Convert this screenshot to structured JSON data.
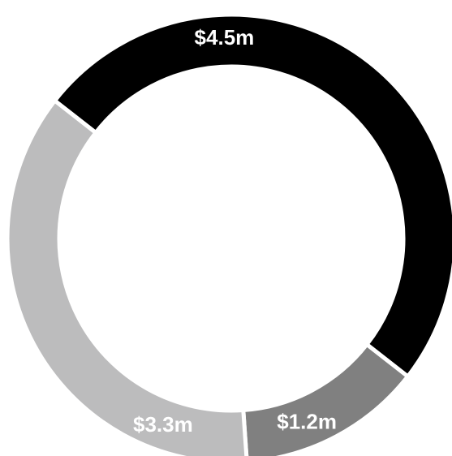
{
  "chart_data": {
    "type": "pie",
    "variant": "donut",
    "title": "",
    "slices": [
      {
        "label": "$4.5m",
        "value": 4.5,
        "color": "#000000"
      },
      {
        "label": "$1.2m",
        "value": 1.2,
        "color": "#808080"
      },
      {
        "label": "$3.3m",
        "value": 3.3,
        "color": "#bcbcbd"
      }
    ]
  }
}
